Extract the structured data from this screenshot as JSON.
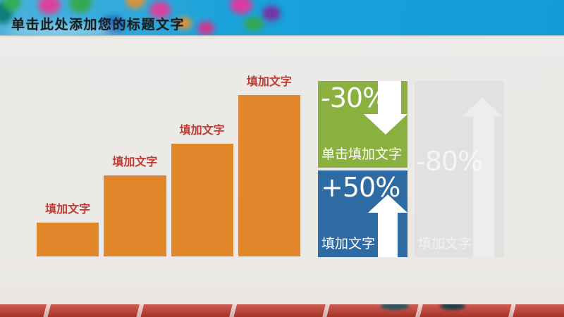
{
  "slide": {
    "title": "单击此处添加您的标题文字"
  },
  "chart_data": {
    "type": "bar",
    "title": "",
    "xlabel": "",
    "ylabel": "",
    "categories": [
      "填加文字",
      "填加文字",
      "填加文字",
      "填加文字"
    ],
    "values": [
      21,
      50,
      70,
      100
    ],
    "ylim": [
      0,
      100
    ],
    "grid": false,
    "axes_visible": false,
    "legend": "none",
    "bar_color": "#e1862b",
    "label_color": "#c23a35"
  },
  "stats": [
    {
      "percent": "-30%",
      "caption": "单击填加文字",
      "direction": "down",
      "icon": "arrow-down-icon",
      "bg_color": "#8ab13f",
      "text_color": "#ffffff"
    },
    {
      "percent": "+50%",
      "caption": "填加文字",
      "direction": "up",
      "icon": "arrow-up-icon",
      "bg_color": "#2e6ba4",
      "text_color": "#ffffff"
    },
    {
      "percent": "-80%",
      "caption": "填加文字",
      "direction": "up",
      "icon": "arrow-up-icon",
      "bg_color": "#e3e1df",
      "text_color": "#eeedeb",
      "faded": true
    }
  ],
  "colors": {
    "header_blue": "#18a0d8",
    "content_bg": "#ebe9e6",
    "track_red": "#c23a2e",
    "title_text": "#1d1d1d"
  }
}
